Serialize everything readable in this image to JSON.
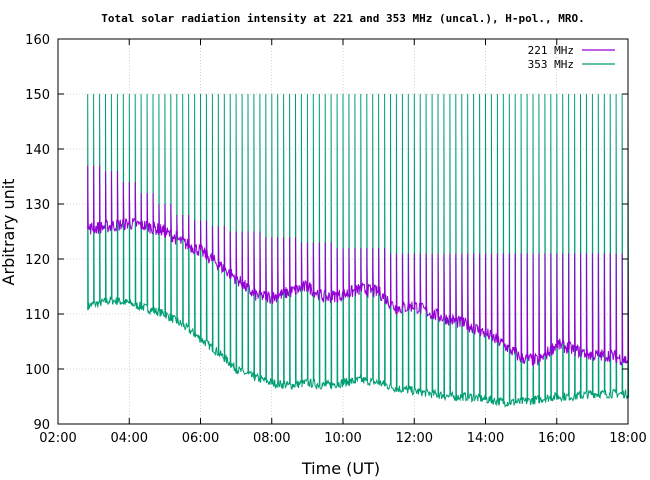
{
  "chart_data": {
    "type": "line",
    "title": "Total solar radiation intensity at 221 and 353 MHz (uncal.), H-pol., MRO.",
    "xlabel": "Time (UT)",
    "ylabel": "Arbitrary unit",
    "xlim": [
      "02:00",
      "18:00"
    ],
    "ylim": [
      90,
      160
    ],
    "x_ticks": [
      "02:00",
      "04:00",
      "06:00",
      "08:00",
      "10:00",
      "12:00",
      "14:00",
      "16:00",
      "18:00"
    ],
    "y_ticks": [
      "90",
      "100",
      "110",
      "120",
      "130",
      "140",
      "150",
      "160"
    ],
    "grid": true,
    "legend_position": "top-right",
    "series": [
      {
        "name": "221 MHz",
        "color": "#9400d3",
        "x": [
          "02:50",
          "03:30",
          "04:00",
          "04:30",
          "05:00",
          "05:30",
          "06:00",
          "06:30",
          "07:00",
          "07:30",
          "08:00",
          "08:30",
          "09:00",
          "09:30",
          "10:00",
          "10:30",
          "11:00",
          "11:30",
          "12:00",
          "12:30",
          "13:00",
          "13:30",
          "14:00",
          "14:30",
          "15:00",
          "15:30",
          "16:00",
          "16:30",
          "17:00",
          "17:30",
          "18:00"
        ],
        "values": [
          125.5,
          126.0,
          126.5,
          126.0,
          125.0,
          123.0,
          121.5,
          119.0,
          116.5,
          113.5,
          113.0,
          114.0,
          115.0,
          113.0,
          113.5,
          114.5,
          114.0,
          111.0,
          111.5,
          110.0,
          109.0,
          108.0,
          106.5,
          104.5,
          102.0,
          101.5,
          104.5,
          103.5,
          102.5,
          102.5,
          101.5
        ],
        "spike_peaks": [
          137,
          136,
          134,
          132,
          130,
          128,
          127,
          126,
          125,
          125,
          124,
          124,
          123,
          123,
          122,
          122,
          122,
          121,
          121,
          121,
          121
        ]
      },
      {
        "name": "353 MHz",
        "color": "#009e73",
        "x": [
          "02:50",
          "03:30",
          "04:00",
          "04:30",
          "05:00",
          "05:30",
          "06:00",
          "06:30",
          "07:00",
          "07:30",
          "08:00",
          "08:30",
          "09:00",
          "09:30",
          "10:00",
          "10:30",
          "11:00",
          "11:30",
          "12:00",
          "12:30",
          "13:00",
          "13:30",
          "14:00",
          "14:30",
          "15:00",
          "15:30",
          "16:00",
          "16:30",
          "17:00",
          "17:30",
          "18:00"
        ],
        "values": [
          111.5,
          112.5,
          112.0,
          111.0,
          110.0,
          108.0,
          105.5,
          103.0,
          100.0,
          98.5,
          97.5,
          97.0,
          97.5,
          97.0,
          97.5,
          98.0,
          97.5,
          96.5,
          96.0,
          95.5,
          95.0,
          95.0,
          94.5,
          94.0,
          94.0,
          94.5,
          95.0,
          95.0,
          95.5,
          95.5,
          95.5
        ],
        "spike_peak": 150
      }
    ]
  }
}
